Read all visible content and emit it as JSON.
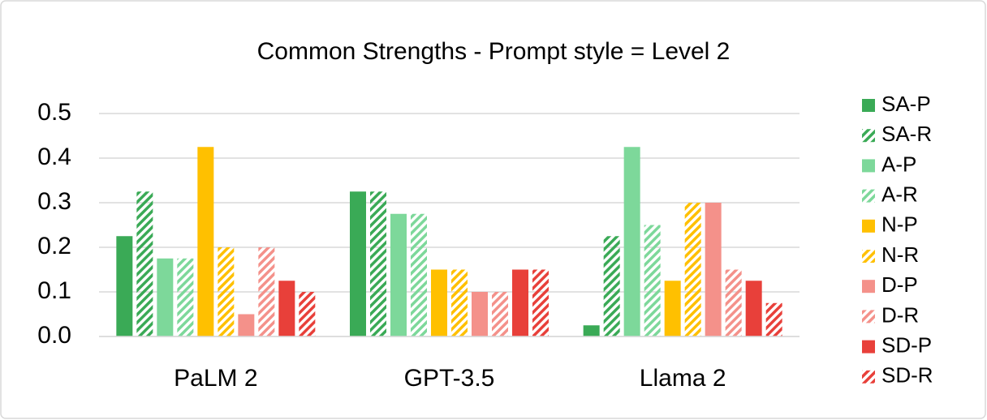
{
  "chart_data": {
    "type": "bar",
    "title": "Common Strengths - Prompt style = Level 2",
    "categories": [
      "PaLM 2",
      "GPT-3.5",
      "Llama 2"
    ],
    "series": [
      {
        "name": "SA-P",
        "color": "#3aaa56",
        "hatch": false,
        "values": [
          0.225,
          0.325,
          0.025
        ]
      },
      {
        "name": "SA-R",
        "color": "#3aaa56",
        "hatch": true,
        "values": [
          0.325,
          0.325,
          0.225
        ]
      },
      {
        "name": "A-P",
        "color": "#7dd89a",
        "hatch": false,
        "values": [
          0.175,
          0.275,
          0.425
        ]
      },
      {
        "name": "A-R",
        "color": "#7dd89a",
        "hatch": true,
        "values": [
          0.175,
          0.275,
          0.25
        ]
      },
      {
        "name": "N-P",
        "color": "#ffc000",
        "hatch": false,
        "values": [
          0.425,
          0.15,
          0.125
        ]
      },
      {
        "name": "N-R",
        "color": "#ffc000",
        "hatch": true,
        "values": [
          0.2,
          0.15,
          0.3
        ]
      },
      {
        "name": "D-P",
        "color": "#f4918a",
        "hatch": false,
        "values": [
          0.05,
          0.1,
          0.3
        ]
      },
      {
        "name": "D-R",
        "color": "#f4918a",
        "hatch": true,
        "values": [
          0.2,
          0.1,
          0.15
        ]
      },
      {
        "name": "SD-P",
        "color": "#e8403a",
        "hatch": false,
        "values": [
          0.125,
          0.15,
          0.125
        ]
      },
      {
        "name": "SD-R",
        "color": "#e8403a",
        "hatch": true,
        "values": [
          0.1,
          0.15,
          0.075
        ]
      }
    ],
    "ylim": [
      0,
      0.5
    ],
    "yticks": [
      {
        "value": 0,
        "label": "0.0"
      },
      0.1,
      0.2,
      0.3,
      0.4,
      0.5
    ],
    "grid": true,
    "legend": "right"
  }
}
